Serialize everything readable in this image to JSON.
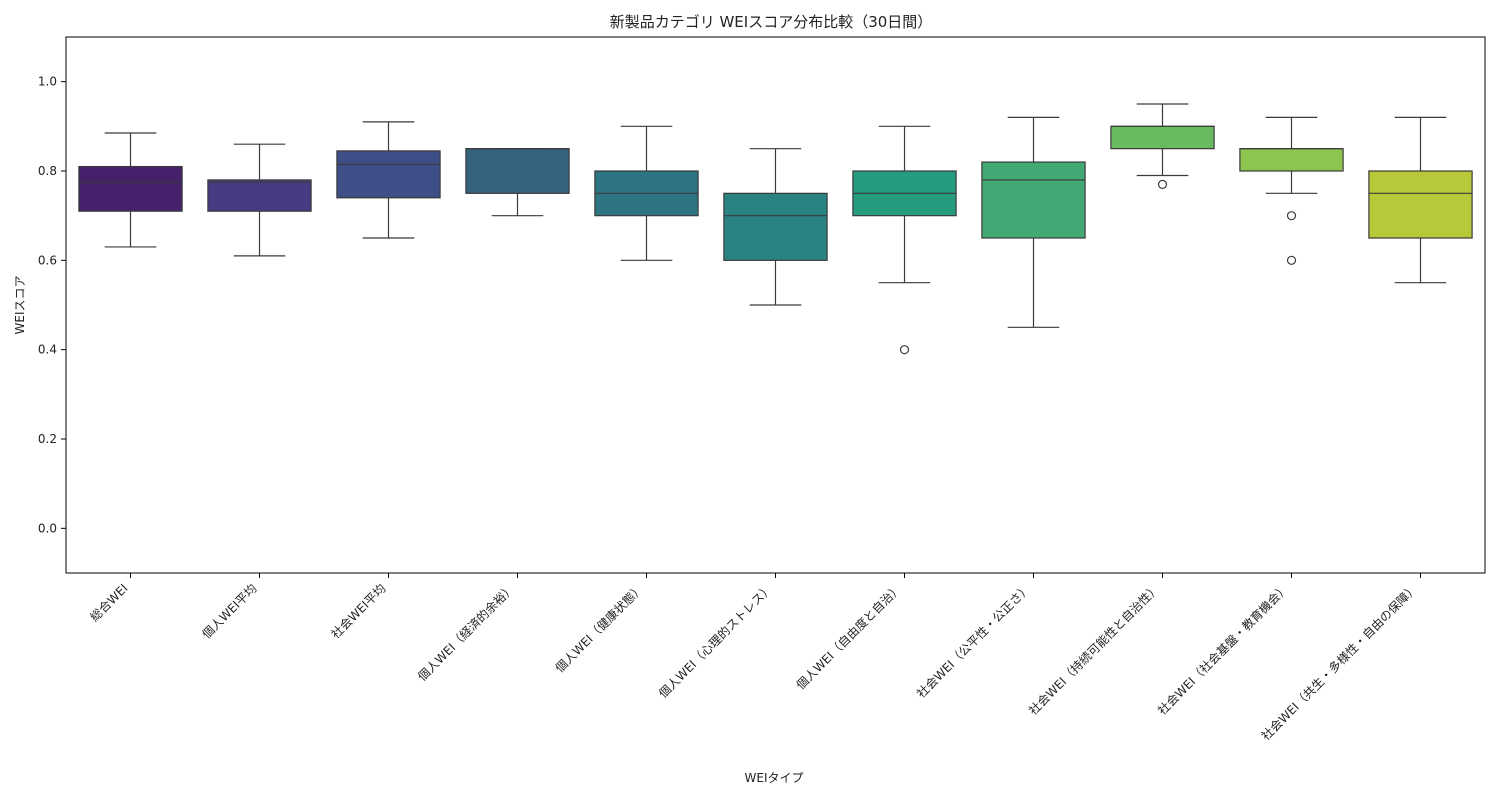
{
  "chart_data": {
    "type": "box",
    "title": "新製品カテゴリ WEIスコア分布比較（30日間）",
    "xlabel": "WEIタイプ",
    "ylabel": "WEIスコア",
    "ylim": [
      -0.1,
      1.1
    ],
    "yticks": [
      "0.0",
      "0.2",
      "0.4",
      "0.6",
      "0.8",
      "1.0"
    ],
    "grid": false,
    "legend": "none",
    "categories": [
      "総合WEI",
      "個人WEI平均",
      "社会WEI平均",
      "個人WEI（経済的余裕）",
      "個人WEI（健康状態）",
      "個人WEI（心理的ストレス）",
      "個人WEI（自由度と自治）",
      "社会WEI（公平性・公正さ）",
      "社会WEI（持続可能性と自治性）",
      "社会WEI（社会基盤・教育機会）",
      "社会WEI（共生・多様性・自由の保障）"
    ],
    "boxes": [
      {
        "whisker_low": 0.63,
        "q1": 0.71,
        "median": 0.775,
        "q3": 0.81,
        "whisker_high": 0.885,
        "outliers": [],
        "color": "#46216b"
      },
      {
        "whisker_low": 0.61,
        "q1": 0.71,
        "median": 0.775,
        "q3": 0.78,
        "whisker_high": 0.86,
        "outliers": [],
        "color": "#473a80"
      },
      {
        "whisker_low": 0.65,
        "q1": 0.74,
        "median": 0.815,
        "q3": 0.845,
        "whisker_high": 0.91,
        "outliers": [],
        "color": "#3d4f86"
      },
      {
        "whisker_low": 0.7,
        "q1": 0.75,
        "median": 0.85,
        "q3": 0.85,
        "whisker_high": 0.85,
        "outliers": [],
        "color": "#35637e"
      },
      {
        "whisker_low": 0.6,
        "q1": 0.7,
        "median": 0.75,
        "q3": 0.8,
        "whisker_high": 0.9,
        "outliers": [],
        "color": "#2e7583"
      },
      {
        "whisker_low": 0.5,
        "q1": 0.6,
        "median": 0.7,
        "q3": 0.75,
        "whisker_high": 0.85,
        "outliers": [],
        "color": "#2a8383"
      },
      {
        "whisker_low": 0.55,
        "q1": 0.7,
        "median": 0.75,
        "q3": 0.8,
        "whisker_high": 0.9,
        "outliers": [
          0.4
        ],
        "color": "#259b80"
      },
      {
        "whisker_low": 0.45,
        "q1": 0.65,
        "median": 0.78,
        "q3": 0.82,
        "whisker_high": 0.92,
        "outliers": [],
        "color": "#42a874"
      },
      {
        "whisker_low": 0.79,
        "q1": 0.85,
        "median": 0.9,
        "q3": 0.9,
        "whisker_high": 0.95,
        "outliers": [
          0.77
        ],
        "color": "#6abb60"
      },
      {
        "whisker_low": 0.75,
        "q1": 0.8,
        "median": 0.85,
        "q3": 0.85,
        "whisker_high": 0.92,
        "outliers": [
          0.7,
          0.6
        ],
        "color": "#8cc651"
      },
      {
        "whisker_low": 0.55,
        "q1": 0.65,
        "median": 0.75,
        "q3": 0.8,
        "whisker_high": 0.92,
        "outliers": [],
        "color": "#b7c938"
      }
    ]
  }
}
